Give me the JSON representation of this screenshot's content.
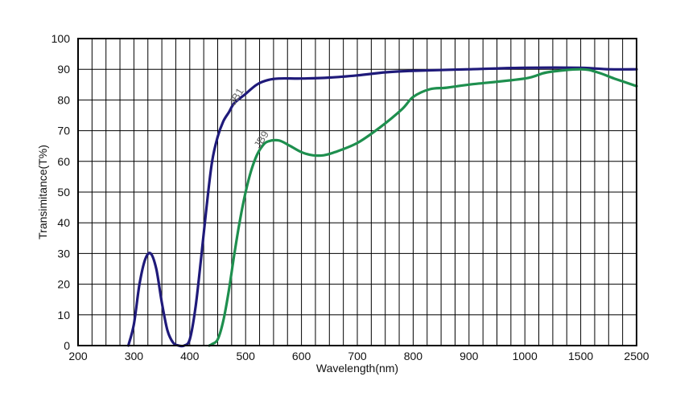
{
  "chart_data": {
    "type": "line",
    "xlabel": "Wavelength(nm)",
    "ylabel": "Transimitance(T%)",
    "x_ticks": [
      "200",
      "300",
      "400",
      "500",
      "600",
      "700",
      "800",
      "900",
      "1000",
      "1500",
      "2500"
    ],
    "y_ticks": [
      "0",
      "10",
      "20",
      "30",
      "40",
      "50",
      "60",
      "70",
      "80",
      "90",
      "100"
    ],
    "ylim": [
      0,
      100
    ],
    "grid": true,
    "series": [
      {
        "name": "JB1",
        "color": "#1f1a7a",
        "points": [
          [
            290,
            0
          ],
          [
            300,
            7
          ],
          [
            310,
            20
          ],
          [
            320,
            28
          ],
          [
            330,
            30
          ],
          [
            340,
            25
          ],
          [
            350,
            14
          ],
          [
            360,
            5
          ],
          [
            370,
            1
          ],
          [
            380,
            0
          ],
          [
            390,
            0
          ],
          [
            400,
            2
          ],
          [
            410,
            12
          ],
          [
            420,
            28
          ],
          [
            430,
            45
          ],
          [
            440,
            60
          ],
          [
            450,
            68
          ],
          [
            460,
            73
          ],
          [
            470,
            76
          ],
          [
            480,
            79
          ],
          [
            500,
            82
          ],
          [
            520,
            85
          ],
          [
            540,
            86.5
          ],
          [
            560,
            87
          ],
          [
            600,
            87
          ],
          [
            650,
            87.3
          ],
          [
            700,
            88
          ],
          [
            750,
            89
          ],
          [
            800,
            89.5
          ],
          [
            900,
            90
          ],
          [
            1000,
            90.5
          ],
          [
            1500,
            90.5
          ],
          [
            2000,
            90
          ],
          [
            2500,
            90
          ]
        ]
      },
      {
        "name": "JB9",
        "color": "#1e8f4e",
        "points": [
          [
            435,
            0
          ],
          [
            440,
            0.5
          ],
          [
            450,
            2
          ],
          [
            460,
            8
          ],
          [
            470,
            18
          ],
          [
            480,
            30
          ],
          [
            490,
            41
          ],
          [
            500,
            50
          ],
          [
            510,
            57
          ],
          [
            520,
            62
          ],
          [
            530,
            65
          ],
          [
            540,
            66.5
          ],
          [
            560,
            66.8
          ],
          [
            580,
            65
          ],
          [
            600,
            63
          ],
          [
            620,
            62
          ],
          [
            640,
            62
          ],
          [
            660,
            63
          ],
          [
            700,
            66
          ],
          [
            740,
            71
          ],
          [
            780,
            77
          ],
          [
            800,
            81
          ],
          [
            830,
            83.5
          ],
          [
            860,
            84
          ],
          [
            900,
            85
          ],
          [
            1000,
            87
          ],
          [
            1200,
            89
          ],
          [
            1500,
            90
          ],
          [
            1800,
            89
          ],
          [
            2100,
            87
          ],
          [
            2500,
            84.5
          ]
        ]
      }
    ]
  }
}
